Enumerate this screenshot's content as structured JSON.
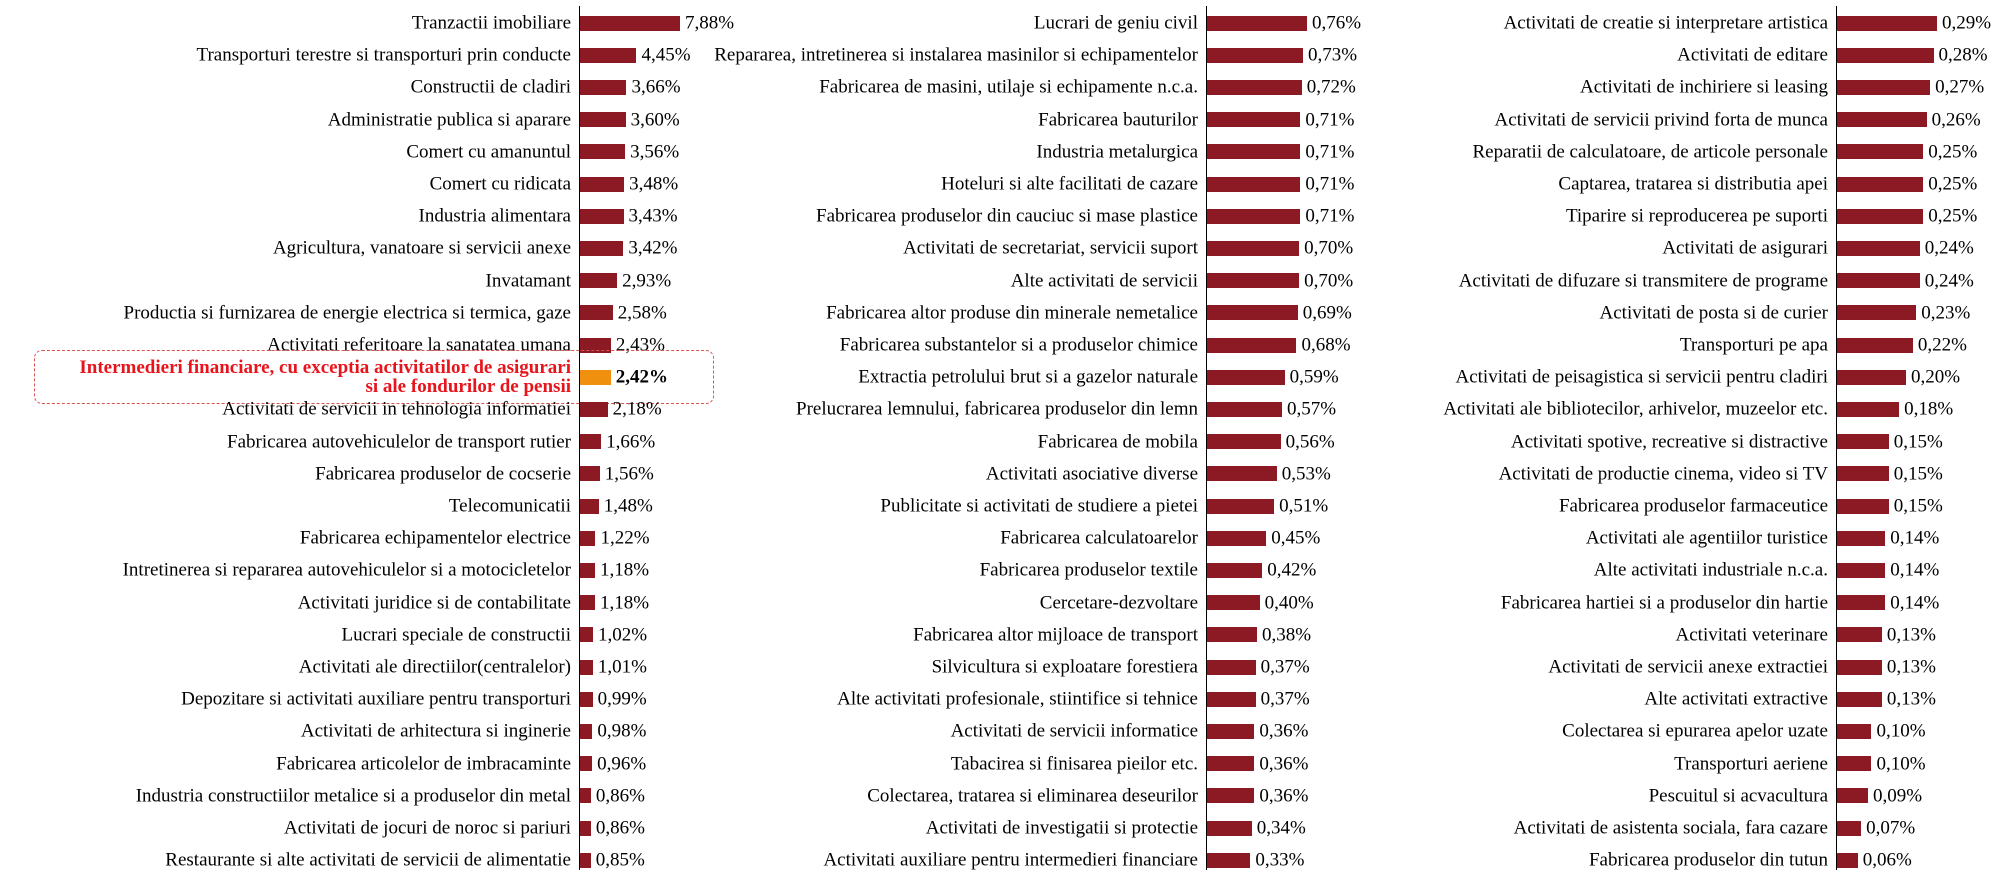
{
  "chart_data": [
    {
      "type": "hbar",
      "color": "#8b1a24",
      "highlight": 11,
      "highlight_color": "#f0900f",
      "highlight_text_color": "#e8141c",
      "categories": [
        "Tranzactii imobiliare",
        "Transporturi terestre si transporturi prin conducte",
        "Constructii de cladiri",
        "Administratie publica si aparare",
        "Comert cu amanuntul",
        "Comert cu ridicata",
        "Industria alimentara",
        "Agricultura, vanatoare si servicii anexe",
        "Invatamant",
        "Productia si furnizarea de energie electrica si termica, gaze",
        "Activitati referitoare la sanatatea umana",
        "Intermedieri financiare, cu exceptia activitatilor de asigurari si ale fondurilor de pensii",
        "Activitati de servicii in tehnologia informatiei",
        "Fabricarea autovehiculelor de transport rutier",
        "Fabricarea produselor de cocserie",
        "Telecomunicatii",
        "Fabricarea echipamentelor electrice",
        "Intretinerea si repararea autovehiculelor si a motocicletelor",
        "Activitati juridice si de contabilitate",
        "Lucrari speciale de constructii",
        "Activitati ale directiilor(centralelor)",
        "Depozitare si activitati auxiliare pentru transporturi",
        "Activitati de arhitectura si inginerie",
        "Fabricarea articolelor de imbracaminte",
        "Industria constructiilor metalice si a produselor din metal",
        "Activitati de jocuri de noroc si pariuri",
        "Restaurante si alte activitati de servicii de alimentatie"
      ],
      "values": [
        7.88,
        4.45,
        3.66,
        3.6,
        3.56,
        3.48,
        3.43,
        3.42,
        2.93,
        2.58,
        2.43,
        2.42,
        2.18,
        1.66,
        1.56,
        1.48,
        1.22,
        1.18,
        1.18,
        1.02,
        1.01,
        0.99,
        0.98,
        0.96,
        0.86,
        0.86,
        0.85
      ],
      "value_labels": [
        "7,88%",
        "4,45%",
        "3,66%",
        "3,60%",
        "3,56%",
        "3,48%",
        "3,43%",
        "3,42%",
        "2,93%",
        "2,58%",
        "2,43%",
        "2,42%",
        "2,18%",
        "1,66%",
        "1,56%",
        "1,48%",
        "1,22%",
        "1,18%",
        "1,18%",
        "1,02%",
        "1,01%",
        "0,99%",
        "0,98%",
        "0,96%",
        "0,86%",
        "0,86%",
        "0,85%"
      ]
    },
    {
      "type": "hbar",
      "color": "#8b1a24",
      "categories": [
        "Lucrari de geniu civil",
        "Repararea, intretinerea si instalarea masinilor si echipamentelor",
        "Fabricarea de masini, utilaje si echipamente n.c.a.",
        "Fabricarea bauturilor",
        "Industria metalurgica",
        "Hoteluri si alte facilitati de cazare",
        "Fabricarea produselor din cauciuc si mase plastice",
        "Activitati de secretariat, servicii suport",
        "Alte activitati de servicii",
        "Fabricarea altor produse din minerale nemetalice",
        "Fabricarea substantelor si a produselor chimice",
        "Extractia petrolului brut si a gazelor naturale",
        "Prelucrarea lemnului, fabricarea produselor din lemn",
        "Fabricarea de mobila",
        "Activitati asociative diverse",
        "Publicitate si activitati de studiere a pietei",
        "Fabricarea calculatoarelor",
        "Fabricarea produselor textile",
        "Cercetare-dezvoltare",
        "Fabricarea altor mijloace de transport",
        "Silvicultura si exploatare forestiera",
        "Alte activitati profesionale, stiintifice si tehnice",
        "Activitati de servicii informatice",
        "Tabacirea si finisarea pieilor etc.",
        "Colectarea, tratarea si eliminarea deseurilor",
        "Activitati de investigatii si protectie",
        "Activitati auxiliare pentru intermedieri financiare"
      ],
      "values": [
        0.76,
        0.73,
        0.72,
        0.71,
        0.71,
        0.71,
        0.71,
        0.7,
        0.7,
        0.69,
        0.68,
        0.59,
        0.57,
        0.56,
        0.53,
        0.51,
        0.45,
        0.42,
        0.4,
        0.38,
        0.37,
        0.37,
        0.36,
        0.36,
        0.36,
        0.34,
        0.33
      ],
      "value_labels": [
        "0,76%",
        "0,73%",
        "0,72%",
        "0,71%",
        "0,71%",
        "0,71%",
        "0,71%",
        "0,70%",
        "0,70%",
        "0,69%",
        "0,68%",
        "0,59%",
        "0,57%",
        "0,56%",
        "0,53%",
        "0,51%",
        "0,45%",
        "0,42%",
        "0,40%",
        "0,38%",
        "0,37%",
        "0,37%",
        "0,36%",
        "0,36%",
        "0,36%",
        "0,34%",
        "0,33%"
      ]
    },
    {
      "type": "hbar",
      "color": "#8b1a24",
      "categories": [
        "Activitati de creatie si interpretare artistica",
        "Activitati de editare",
        "Activitati de inchiriere si leasing",
        "Activitati de servicii privind forta de munca",
        "Reparatii de calculatoare, de articole personale",
        "Captarea, tratarea si distributia apei",
        "Tiparire si reproducerea pe suporti",
        "Activitati de asigurari",
        "Activitati de difuzare si transmitere de programe",
        "Activitati de posta si de curier",
        "Transporturi pe apa",
        "Activitati de peisagistica si servicii pentru cladiri",
        "Activitati ale bibliotecilor, arhivelor, muzeelor etc.",
        "Activitati spotive, recreative si distractive",
        "Activitati de productie cinema, video si TV",
        "Fabricarea produselor farmaceutice",
        "Activitati ale agentiilor turistice",
        "Alte activitati industriale n.c.a.",
        "Fabricarea hartiei si a produselor din hartie",
        "Activitati veterinare",
        "Activitati de servicii anexe extractiei",
        "Alte activitati extractive",
        "Colectarea si epurarea apelor uzate",
        "Transporturi aeriene",
        "Pescuitul si acvacultura",
        "Activitati de asistenta sociala, fara cazare",
        "Fabricarea produselor din tutun"
      ],
      "values": [
        0.29,
        0.28,
        0.27,
        0.26,
        0.25,
        0.25,
        0.25,
        0.24,
        0.24,
        0.23,
        0.22,
        0.2,
        0.18,
        0.15,
        0.15,
        0.15,
        0.14,
        0.14,
        0.14,
        0.13,
        0.13,
        0.13,
        0.1,
        0.1,
        0.09,
        0.07,
        0.06
      ],
      "value_labels": [
        "0,29%",
        "0,28%",
        "0,27%",
        "0,26%",
        "0,25%",
        "0,25%",
        "0,25%",
        "0,24%",
        "0,24%",
        "0,23%",
        "0,22%",
        "0,20%",
        "0,18%",
        "0,15%",
        "0,15%",
        "0,15%",
        "0,14%",
        "0,14%",
        "0,14%",
        "0,13%",
        "0,13%",
        "0,13%",
        "0,10%",
        "0,10%",
        "0,09%",
        "0,07%",
        "0,06%"
      ]
    }
  ]
}
